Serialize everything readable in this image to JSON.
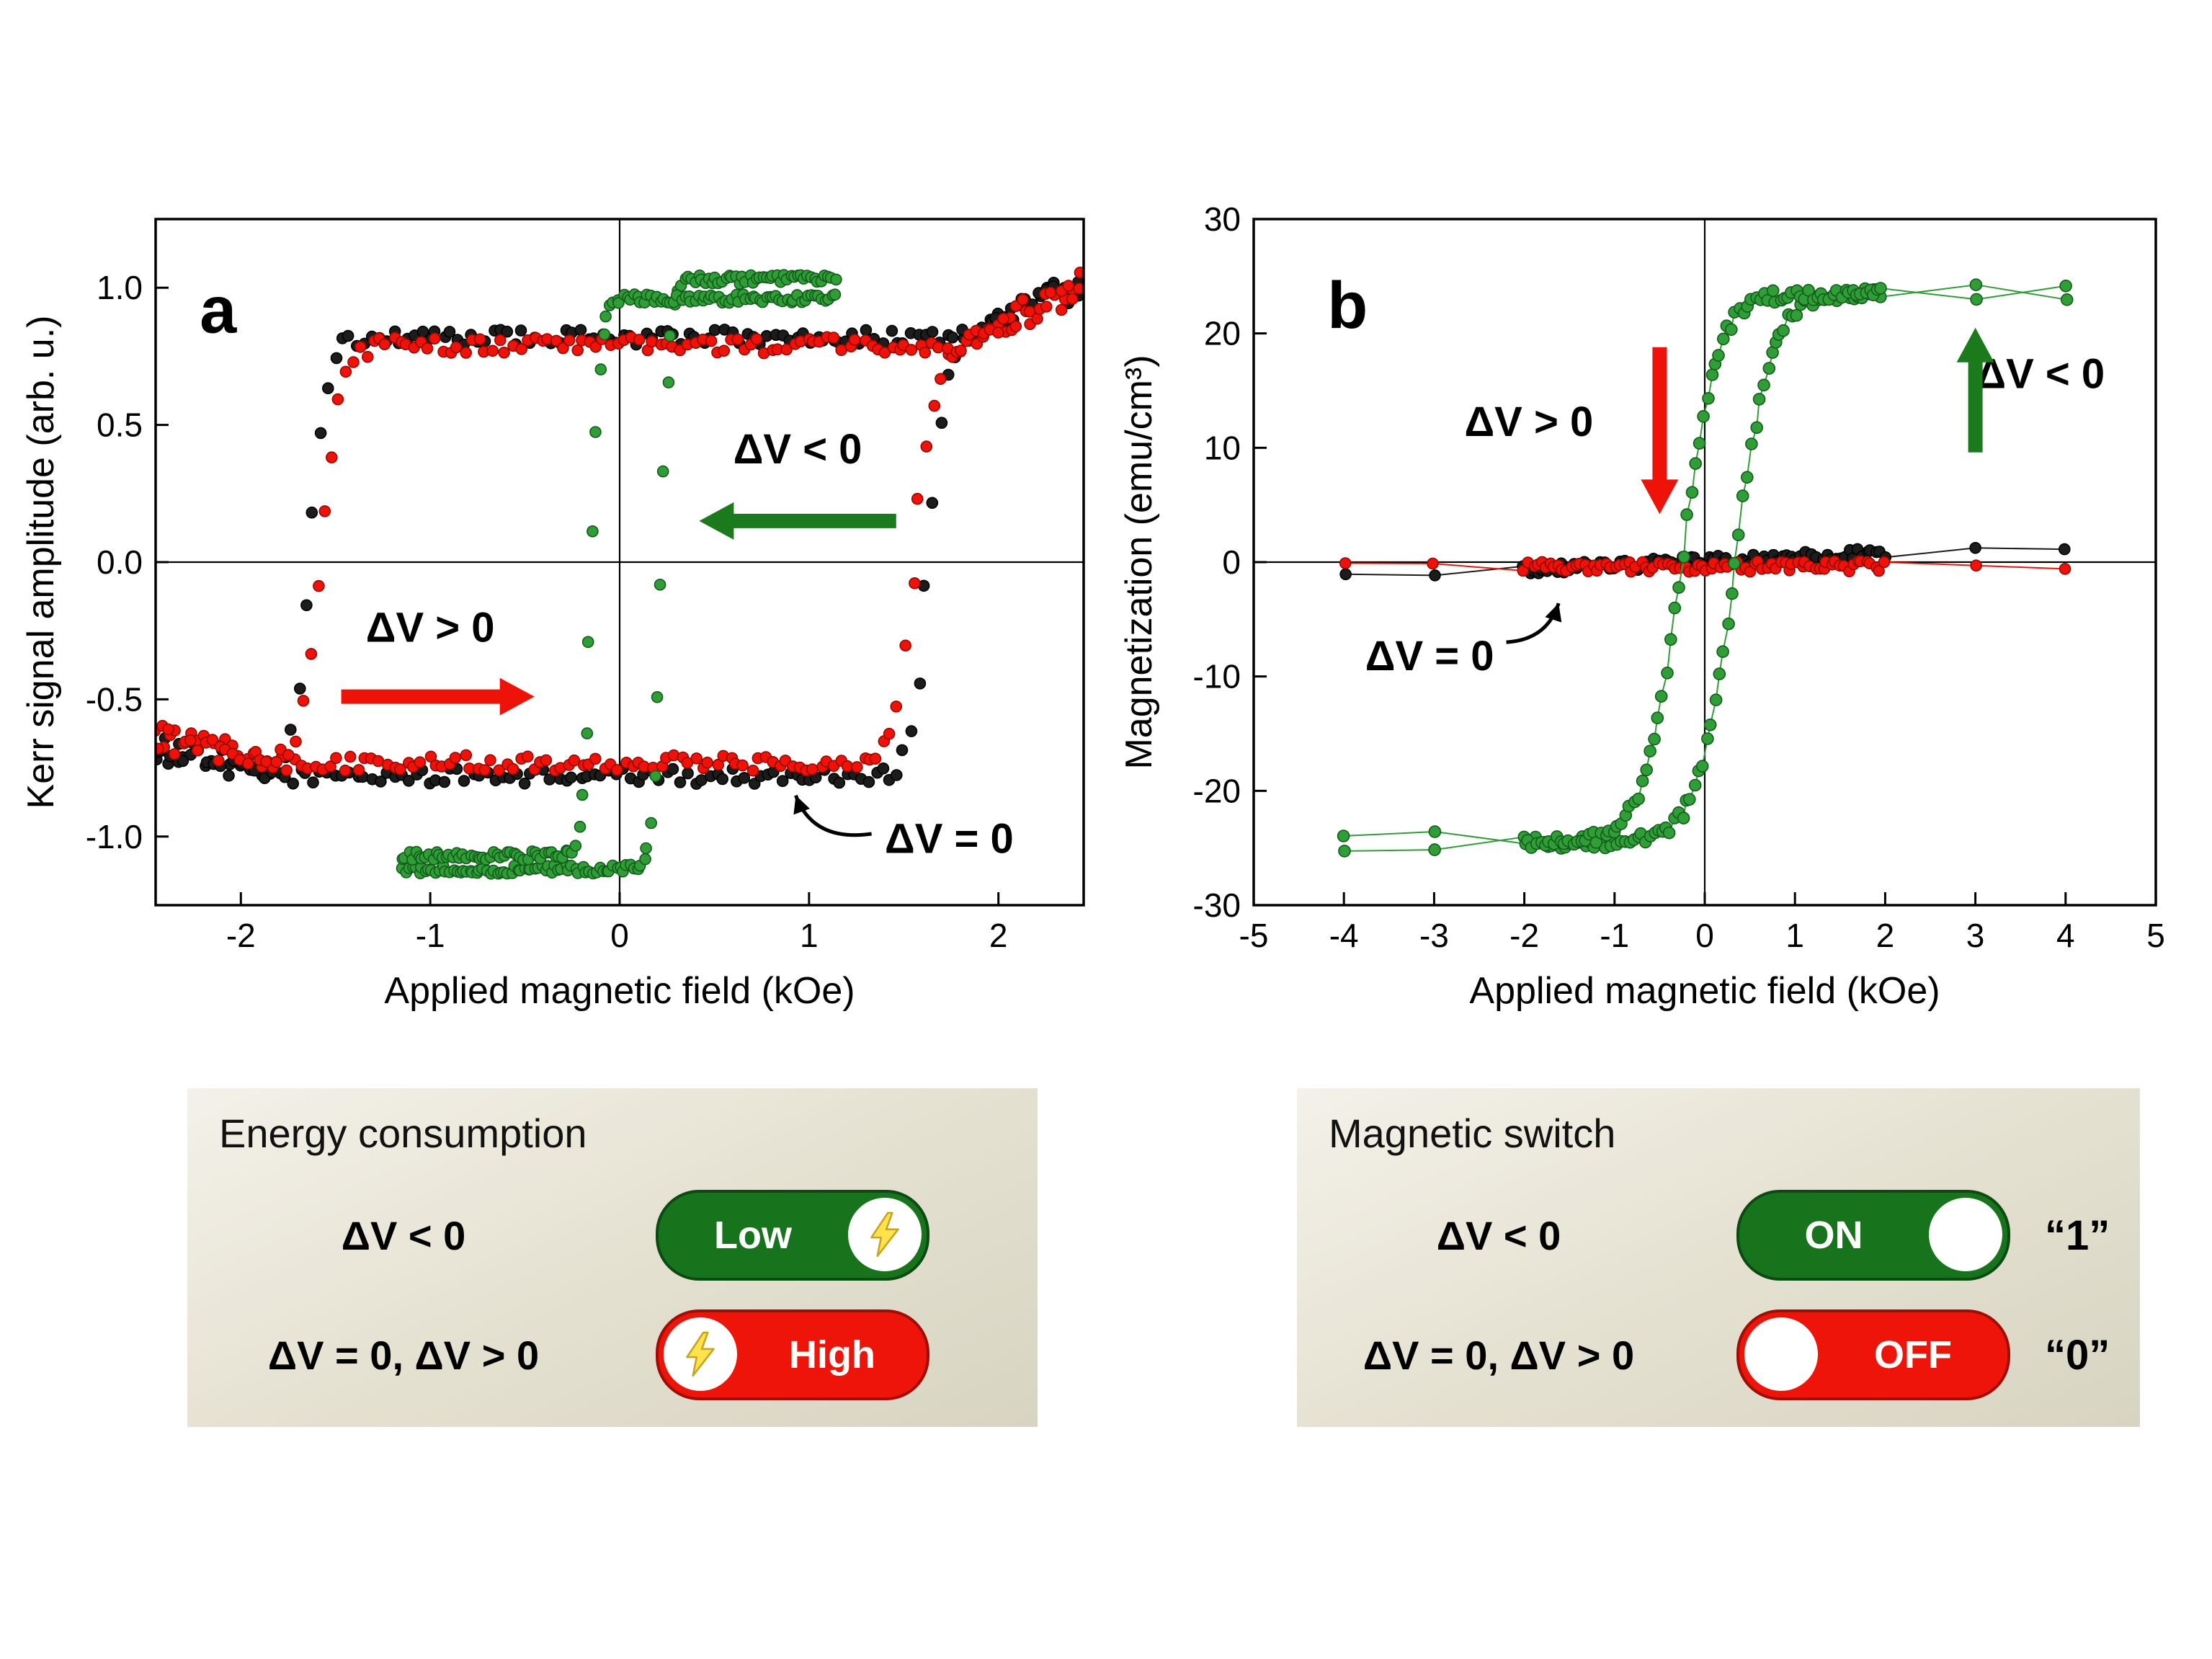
{
  "colors": {
    "green": "#2f9e37",
    "green_dark": "#135b1a",
    "red": "#f21108",
    "red_dark": "#8f0b04",
    "black": "#1c1c1c",
    "arrow_green": "#1b7a1b",
    "arrow_red": "#ee1208",
    "box_background": "#e7e3d4"
  },
  "chart_data": [
    {
      "type": "scatter",
      "panel": "a",
      "xlabel": "Applied magnetic field (kOe)",
      "ylabel": "Kerr signal amplitude (arb. u.)",
      "xlim": [
        -2.45,
        2.45
      ],
      "ylim": [
        -1.25,
        1.25
      ],
      "xticks": [
        -2,
        -1,
        0,
        1,
        2
      ],
      "xtick_labels": [
        "-2",
        "-1",
        "0",
        "1",
        "2"
      ],
      "yticks": [
        -1.0,
        -0.5,
        0.0,
        0.5,
        1.0
      ],
      "ytick_labels": [
        "-1.0",
        "-0.5",
        "0.0",
        "0.5",
        "1.0"
      ],
      "grid": false,
      "legend": "none",
      "series": [
        {
          "name": "ΔV = 0",
          "color": "#1c1c1c",
          "edge": "#000000",
          "marker_r": 7.5,
          "loop": {
            "x_range": [
              -2.45,
              2.45
            ],
            "step": 0.038,
            "x_jitter": 0.012,
            "y_high": 0.82,
            "y_low": -0.78,
            "coercive_up": 1.63,
            "coercive_down": -1.63,
            "width": 0.085,
            "tail_start": 1.8,
            "tail_pos": 0.3,
            "tail_neg": 0.16,
            "noise": 0.028
          }
        },
        {
          "name": "ΔV > 0",
          "color": "#f21108",
          "edge": "#8f0b04",
          "marker_r": 7.5,
          "loop": {
            "x_range": [
              -2.45,
              2.45
            ],
            "step": 0.037,
            "x_jitter": 0.012,
            "y_high": 0.79,
            "y_low": -0.73,
            "coercive_up": 1.56,
            "coercive_down": -1.58,
            "width": 0.1,
            "tail_start": 1.8,
            "tail_pos": 0.34,
            "tail_neg": 0.14,
            "noise": 0.03
          }
        },
        {
          "name": "ΔV < 0",
          "color": "#2f9e37",
          "edge": "#135b1a",
          "marker_r": 7.5,
          "loop": {
            "x_range": [
              -1.15,
              1.15
            ],
            "step": 0.018,
            "x_jitter": 0.008,
            "y_high_asc": 1.03,
            "y_low_asc": -1.12,
            "y_high_desc": 0.96,
            "y_low_desc": -1.07,
            "coercive_up": 0.22,
            "coercive_down": -0.15,
            "width": 0.045,
            "noise": 0.016
          }
        }
      ],
      "annotations": [
        {
          "kind": "panel-label",
          "text": "a",
          "x": -2.12,
          "y": 0.9
        },
        {
          "kind": "text",
          "text": "ΔV < 0",
          "x": 0.94,
          "y": 0.4
        },
        {
          "kind": "arrow",
          "color": "#1b7a1b",
          "x1": 1.46,
          "y1": 0.15,
          "x2": 0.42,
          "y2": 0.15
        },
        {
          "kind": "text",
          "text": "ΔV > 0",
          "x": -1.0,
          "y": -0.25
        },
        {
          "kind": "arrow",
          "color": "#ee1208",
          "x1": -1.47,
          "y1": -0.49,
          "x2": -0.45,
          "y2": -0.49
        },
        {
          "kind": "text",
          "text": "ΔV = 0",
          "x": 1.74,
          "y": -1.02
        },
        {
          "kind": "curve",
          "x1": 1.33,
          "y1": -0.99,
          "cx": 1.02,
          "cy": -1.02,
          "x2": 0.93,
          "y2": -0.85
        }
      ]
    },
    {
      "type": "scatter",
      "panel": "b",
      "xlabel": "Applied magnetic field (kOe)",
      "ylabel": "Magnetization (emu/cm³)",
      "xlim": [
        -5,
        5
      ],
      "ylim": [
        -30,
        30
      ],
      "xticks": [
        -5,
        -4,
        -3,
        -2,
        -1,
        0,
        1,
        2,
        3,
        4,
        5
      ],
      "xtick_labels": [
        "-5",
        "-4",
        "-3",
        "-2",
        "-1",
        "0",
        "1",
        "2",
        "3",
        "4",
        "5"
      ],
      "yticks": [
        -30,
        -20,
        -10,
        0,
        10,
        20,
        30
      ],
      "ytick_labels": [
        "-30",
        "-20",
        "-10",
        "0",
        "10",
        "20",
        "30"
      ],
      "grid": false,
      "legend": "none",
      "series": [
        {
          "name": "ΔV = 0",
          "color": "#1c1c1c",
          "edge": "#000000",
          "marker_r": 7.5,
          "connect": true,
          "line": {
            "x_range": [
              -2,
              2
            ],
            "step": 0.05,
            "x_extra": [
              -4,
              -3,
              3,
              4
            ],
            "slope": 0.38,
            "intercept": 0.1,
            "noise": 0.5,
            "x_jitter": 0.02
          }
        },
        {
          "name": "ΔV > 0",
          "color": "#f21108",
          "edge": "#8f0b04",
          "marker_r": 7.5,
          "connect": true,
          "line": {
            "x_range": [
              -2,
              2
            ],
            "step": 0.048,
            "x_extra": [
              -4,
              -3,
              3,
              4
            ],
            "slope": 0.02,
            "intercept": -0.4,
            "noise": 0.45,
            "x_jitter": 0.02
          }
        },
        {
          "name": "ΔV < 0",
          "color": "#2f9e37",
          "edge": "#135b1a",
          "marker_r": 8,
          "connect": true,
          "loop": {
            "x_range": [
              -2,
              2
            ],
            "step": 0.045,
            "x_extra": [
              -4,
              -3,
              3,
              4
            ],
            "x_jitter": 0.015,
            "y_high": 23.5,
            "y_low": -24.5,
            "coercive_up": 0.33,
            "coercive_down": -0.27,
            "width": 0.4,
            "noise": 0.55
          }
        }
      ],
      "annotations": [
        {
          "kind": "panel-label",
          "text": "b",
          "x": -3.96,
          "y": 22.0
        },
        {
          "kind": "text",
          "text": "ΔV > 0",
          "x": -1.95,
          "y": 12.0
        },
        {
          "kind": "arrow",
          "color": "#ee1208",
          "x1": -0.5,
          "y1": 18.8,
          "x2": -0.5,
          "y2": 4.2
        },
        {
          "kind": "text",
          "text": "ΔV < 0",
          "x": 3.72,
          "y": 16.2
        },
        {
          "kind": "arrow",
          "color": "#1b7a1b",
          "x1": 3.0,
          "y1": 9.6,
          "x2": 3.0,
          "y2": 20.5
        },
        {
          "kind": "text",
          "text": "ΔV = 0",
          "x": -3.05,
          "y": -8.5
        },
        {
          "kind": "curve",
          "x1": -2.2,
          "y1": -7.0,
          "cx": -1.75,
          "cy": -6.8,
          "x2": -1.62,
          "y2": -3.6
        }
      ]
    }
  ],
  "energy_box": {
    "title": "Energy consumption",
    "rows": [
      {
        "label": "ΔV < 0",
        "pill": "Low",
        "pill_color": "#17741d",
        "knob": "right",
        "bolt": true
      },
      {
        "label": "ΔV = 0, ΔV > 0",
        "pill": "High",
        "pill_color": "#ee1409",
        "knob": "left",
        "bolt": true
      }
    ]
  },
  "switch_box": {
    "title": "Magnetic switch",
    "rows": [
      {
        "label": "ΔV < 0",
        "pill": "ON",
        "pill_color": "#17741d",
        "knob": "right",
        "value": "“1”"
      },
      {
        "label": "ΔV = 0, ΔV > 0",
        "pill": "OFF",
        "pill_color": "#ee1409",
        "knob": "left",
        "value": "“0”"
      }
    ]
  }
}
